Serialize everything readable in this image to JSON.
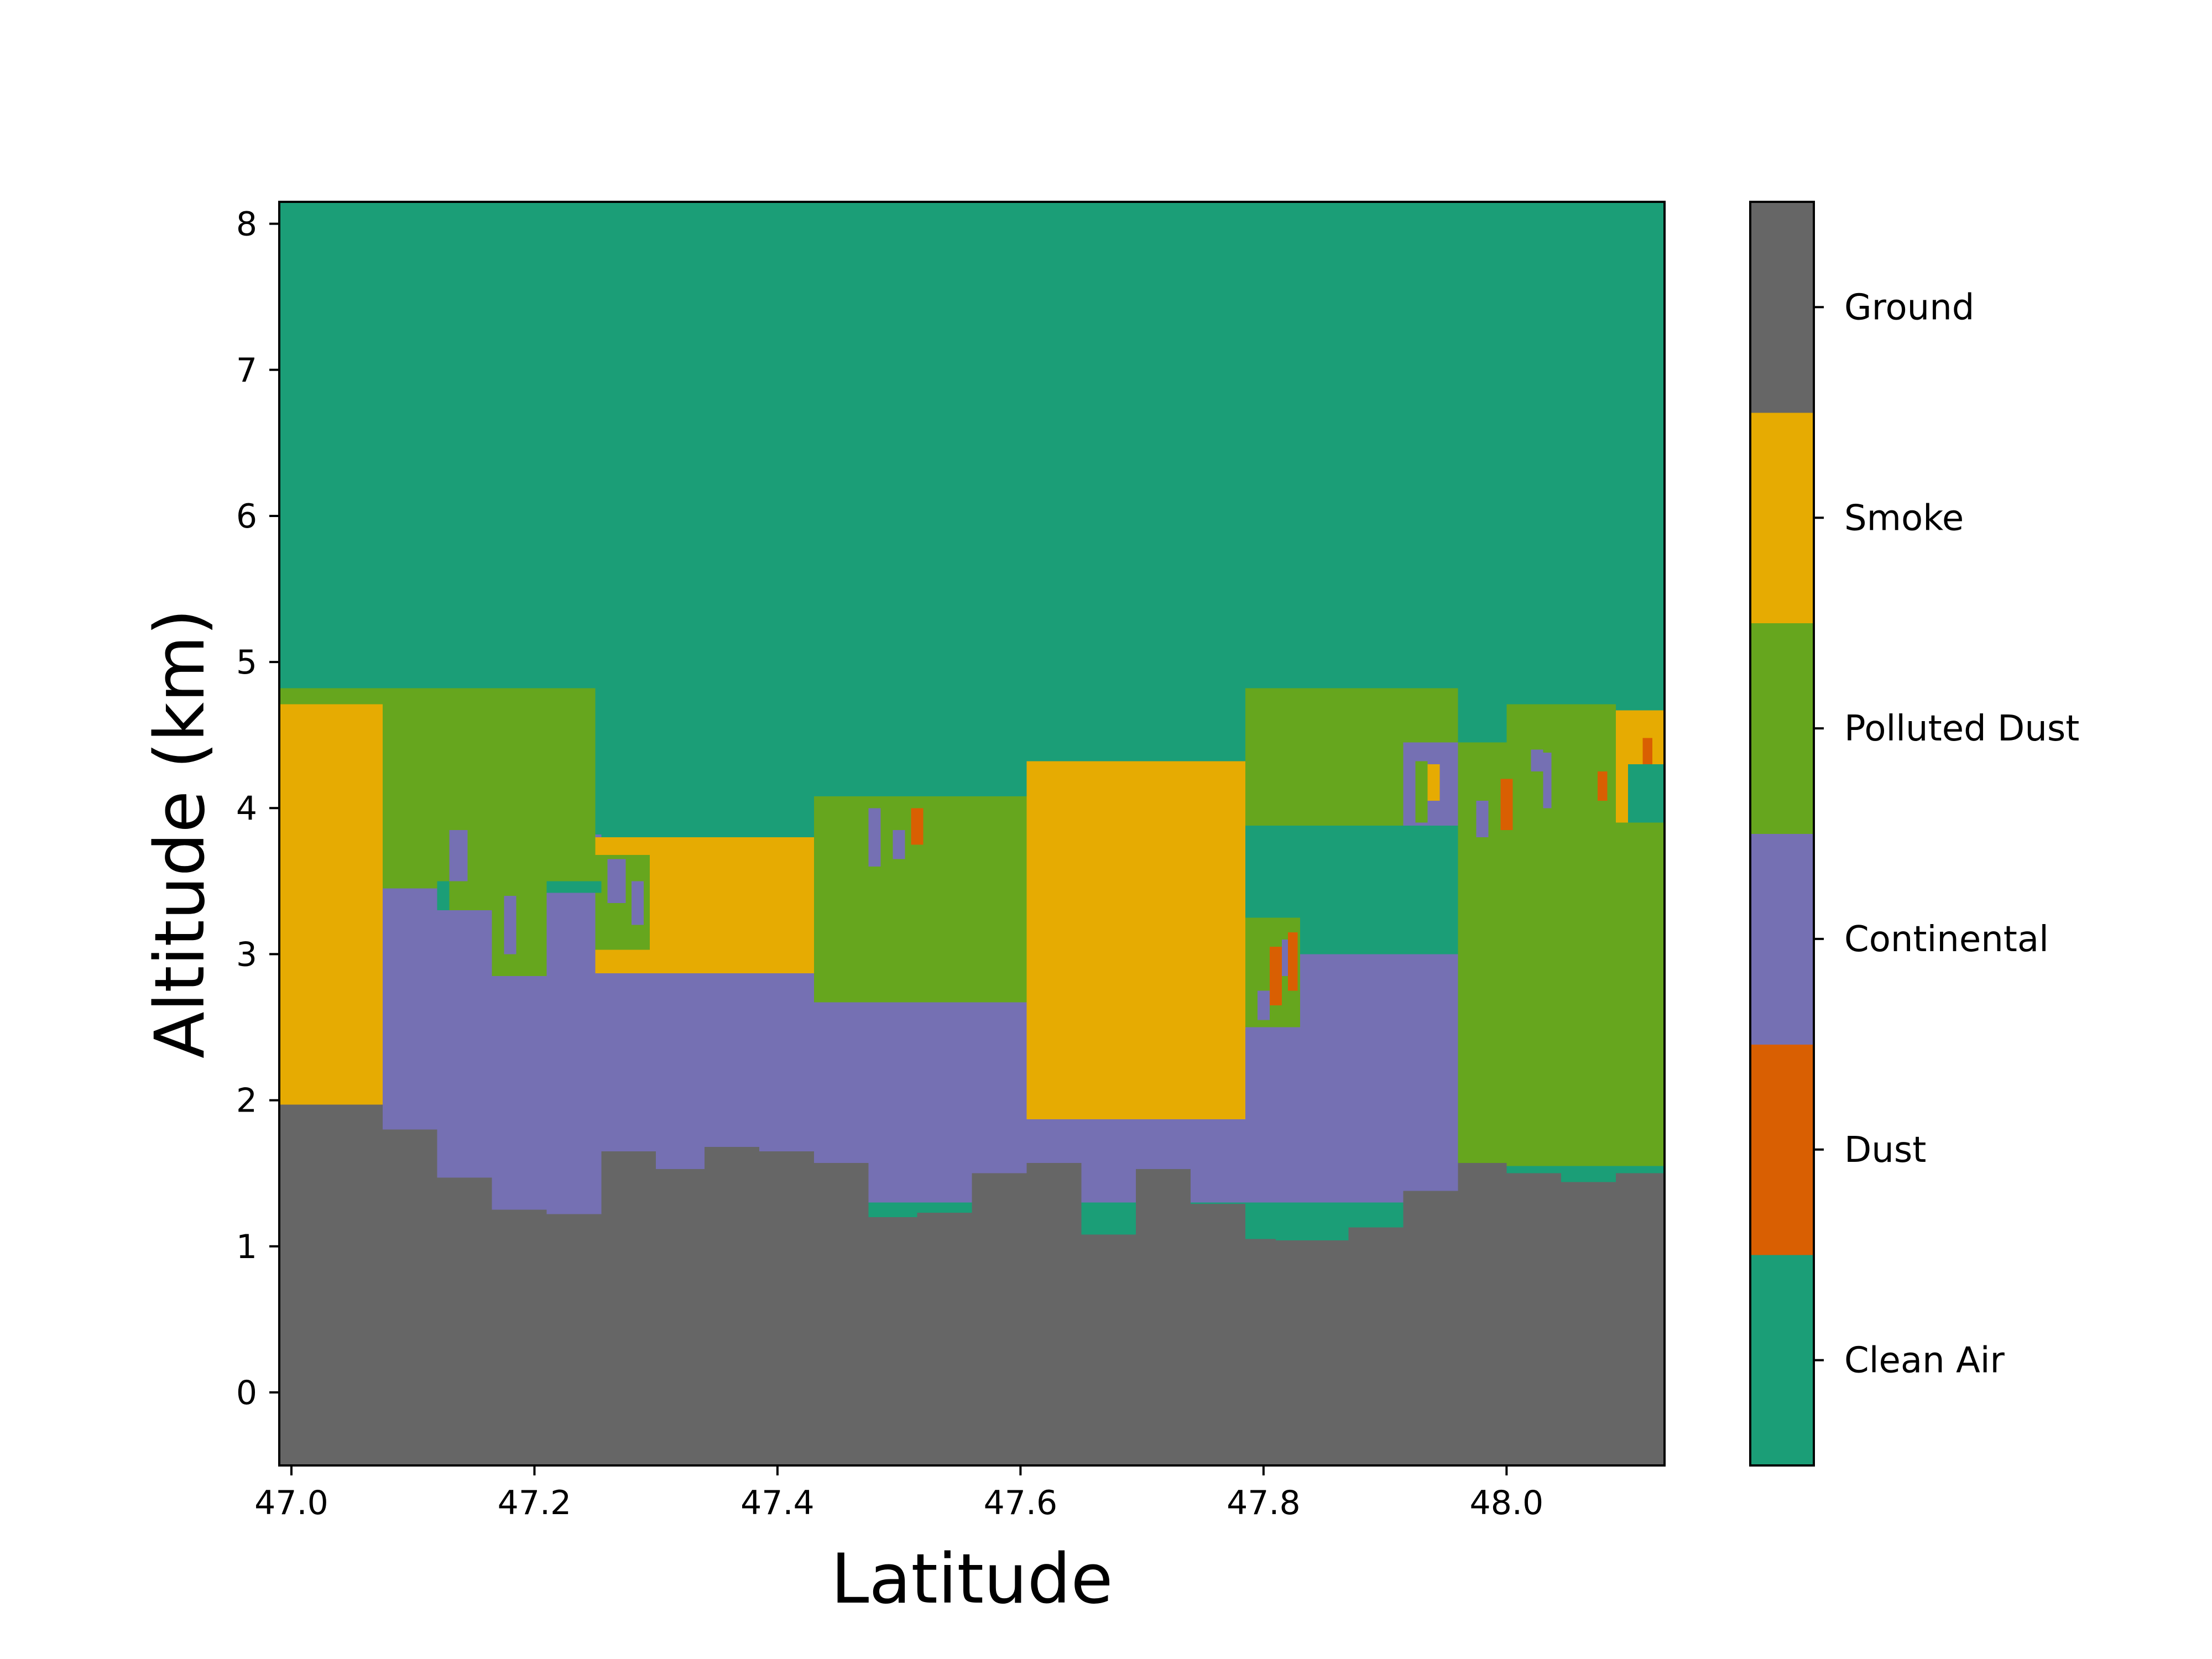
{
  "chart_data": {
    "type": "heatmap",
    "xlabel": "Latitude",
    "ylabel": "Altitude (km)",
    "xlim": [
      46.99,
      48.13
    ],
    "ylim": [
      -0.5,
      8.15
    ],
    "xticks": [
      "47.0",
      "47.2",
      "47.4",
      "47.6",
      "47.8",
      "48.0"
    ],
    "yticks": [
      "0",
      "1",
      "2",
      "3",
      "4",
      "5",
      "6",
      "7",
      "8"
    ],
    "background_class": "Clean Air",
    "classes": [
      {
        "name": "Clean Air",
        "color": "#1b9e77"
      },
      {
        "name": "Dust",
        "color": "#d95f02"
      },
      {
        "name": "Continental",
        "color": "#7570b3"
      },
      {
        "name": "Polluted Dust",
        "color": "#66a61e"
      },
      {
        "name": "Smoke",
        "color": "#e6ab02"
      },
      {
        "name": "Ground",
        "color": "#666666"
      }
    ],
    "regions": [
      {
        "class": "Polluted Dust",
        "x": [
          46.99,
          47.25
        ],
        "y": [
          2.0,
          4.82
        ]
      },
      {
        "class": "Smoke",
        "x": [
          46.99,
          47.075
        ],
        "y": [
          1.95,
          4.71
        ]
      },
      {
        "class": "Continental",
        "x": [
          47.075,
          47.255
        ],
        "y": [
          1.2,
          3.82
        ]
      },
      {
        "class": "Polluted Dust",
        "x": [
          47.075,
          47.25
        ],
        "y": [
          3.45,
          4.82
        ]
      },
      {
        "class": "Polluted Dust",
        "x": [
          47.12,
          47.165
        ],
        "y": [
          3.3,
          3.9
        ]
      },
      {
        "class": "Continental",
        "x": [
          47.13,
          47.145
        ],
        "y": [
          3.5,
          3.85
        ]
      },
      {
        "class": "Polluted Dust",
        "x": [
          47.165,
          47.21
        ],
        "y": [
          2.85,
          3.45
        ]
      },
      {
        "class": "Continental",
        "x": [
          47.175,
          47.185
        ],
        "y": [
          3.0,
          3.4
        ]
      },
      {
        "class": "Smoke",
        "x": [
          47.25,
          47.43
        ],
        "y": [
          2.87,
          3.8
        ]
      },
      {
        "class": "Polluted Dust",
        "x": [
          47.25,
          47.295
        ],
        "y": [
          3.03,
          3.68
        ]
      },
      {
        "class": "Continental",
        "x": [
          47.26,
          47.275
        ],
        "y": [
          3.35,
          3.65
        ]
      },
      {
        "class": "Continental",
        "x": [
          47.28,
          47.29
        ],
        "y": [
          3.2,
          3.5
        ]
      },
      {
        "class": "Continental",
        "x": [
          47.25,
          47.43
        ],
        "y": [
          1.5,
          2.87
        ]
      },
      {
        "class": "Polluted Dust",
        "x": [
          47.43,
          47.605
        ],
        "y": [
          2.67,
          4.08
        ]
      },
      {
        "class": "Continental",
        "x": [
          47.475,
          47.485
        ],
        "y": [
          3.6,
          4.0
        ]
      },
      {
        "class": "Continental",
        "x": [
          47.495,
          47.505
        ],
        "y": [
          3.65,
          3.85
        ]
      },
      {
        "class": "Dust",
        "x": [
          47.51,
          47.52
        ],
        "y": [
          3.75,
          4.0
        ]
      },
      {
        "class": "Continental",
        "x": [
          47.43,
          47.605
        ],
        "y": [
          1.3,
          2.67
        ]
      },
      {
        "class": "Continental",
        "x": [
          47.605,
          47.785
        ],
        "y": [
          1.3,
          1.87
        ]
      },
      {
        "class": "Smoke",
        "x": [
          47.605,
          47.785
        ],
        "y": [
          1.87,
          4.32
        ]
      },
      {
        "class": "Clean Air",
        "x": [
          47.785,
          47.96
        ],
        "y": [
          3.0,
          3.88
        ]
      },
      {
        "class": "Polluted Dust",
        "x": [
          47.785,
          47.96
        ],
        "y": [
          3.88,
          4.82
        ]
      },
      {
        "class": "Continental",
        "x": [
          47.785,
          47.96
        ],
        "y": [
          1.3,
          3.0
        ]
      },
      {
        "class": "Polluted Dust",
        "x": [
          47.785,
          47.83
        ],
        "y": [
          2.5,
          3.25
        ]
      },
      {
        "class": "Continental",
        "x": [
          47.795,
          47.805
        ],
        "y": [
          2.55,
          2.75
        ]
      },
      {
        "class": "Dust",
        "x": [
          47.805,
          47.815
        ],
        "y": [
          2.65,
          3.05
        ]
      },
      {
        "class": "Continental",
        "x": [
          47.815,
          47.82
        ],
        "y": [
          2.85,
          3.1
        ]
      },
      {
        "class": "Dust",
        "x": [
          47.82,
          47.828
        ],
        "y": [
          2.75,
          3.15
        ]
      },
      {
        "class": "Continental",
        "x": [
          47.915,
          47.96
        ],
        "y": [
          3.88,
          4.45
        ]
      },
      {
        "class": "Polluted Dust",
        "x": [
          47.925,
          47.935
        ],
        "y": [
          3.9,
          4.32
        ]
      },
      {
        "class": "Smoke",
        "x": [
          47.935,
          47.945
        ],
        "y": [
          4.05,
          4.3
        ]
      },
      {
        "class": "Polluted Dust",
        "x": [
          47.96,
          48.13
        ],
        "y": [
          1.55,
          4.45
        ]
      },
      {
        "class": "Polluted Dust",
        "x": [
          48.0,
          48.09
        ],
        "y": [
          4.45,
          4.71
        ]
      },
      {
        "class": "Continental",
        "x": [
          47.975,
          47.985
        ],
        "y": [
          3.8,
          4.05
        ]
      },
      {
        "class": "Dust",
        "x": [
          47.995,
          48.005
        ],
        "y": [
          3.85,
          4.2
        ]
      },
      {
        "class": "Continental",
        "x": [
          48.02,
          48.03
        ],
        "y": [
          4.25,
          4.4
        ]
      },
      {
        "class": "Continental",
        "x": [
          48.03,
          48.037
        ],
        "y": [
          4.0,
          4.38
        ]
      },
      {
        "class": "Dust",
        "x": [
          48.075,
          48.083
        ],
        "y": [
          4.05,
          4.25
        ]
      },
      {
        "class": "Polluted Dust",
        "x": [
          48.09,
          48.1
        ],
        "y": [
          4.05,
          4.3
        ]
      },
      {
        "class": "Smoke",
        "x": [
          48.09,
          48.13
        ],
        "y": [
          3.9,
          4.67
        ]
      },
      {
        "class": "Dust",
        "x": [
          48.112,
          48.12
        ],
        "y": [
          4.25,
          4.48
        ]
      },
      {
        "class": "Clean Air",
        "x": [
          48.1,
          48.13
        ],
        "y": [
          3.9,
          4.3
        ]
      }
    ],
    "ground_profile": [
      {
        "x": [
          46.99,
          47.075
        ],
        "top": 1.97
      },
      {
        "x": [
          47.075,
          47.12
        ],
        "top": 1.8
      },
      {
        "x": [
          47.12,
          47.165
        ],
        "top": 1.47
      },
      {
        "x": [
          47.165,
          47.21
        ],
        "top": 1.25
      },
      {
        "x": [
          47.21,
          47.255
        ],
        "top": 1.22
      },
      {
        "x": [
          47.255,
          47.3
        ],
        "top": 1.65
      },
      {
        "x": [
          47.3,
          47.34
        ],
        "top": 1.53
      },
      {
        "x": [
          47.34,
          47.385
        ],
        "top": 1.68
      },
      {
        "x": [
          47.385,
          47.43
        ],
        "top": 1.65
      },
      {
        "x": [
          47.43,
          47.475
        ],
        "top": 1.57
      },
      {
        "x": [
          47.475,
          47.515
        ],
        "top": 1.2
      },
      {
        "x": [
          47.515,
          47.56
        ],
        "top": 1.23
      },
      {
        "x": [
          47.56,
          47.605
        ],
        "top": 1.5
      },
      {
        "x": [
          47.605,
          47.65
        ],
        "top": 1.57
      },
      {
        "x": [
          47.65,
          47.695
        ],
        "top": 1.08
      },
      {
        "x": [
          47.695,
          47.74
        ],
        "top": 1.53
      },
      {
        "x": [
          47.74,
          47.785
        ],
        "top": 1.29
      },
      {
        "x": [
          47.785,
          47.81
        ],
        "top": 1.05
      },
      {
        "x": [
          47.81,
          47.87
        ],
        "top": 1.04
      },
      {
        "x": [
          47.87,
          47.915
        ],
        "top": 1.13
      },
      {
        "x": [
          47.915,
          47.96
        ],
        "top": 1.38
      },
      {
        "x": [
          47.96,
          48.0
        ],
        "top": 1.57
      },
      {
        "x": [
          48.0,
          48.045
        ],
        "top": 1.5
      },
      {
        "x": [
          48.045,
          48.09
        ],
        "top": 1.44
      },
      {
        "x": [
          48.09,
          48.13
        ],
        "top": 1.5
      }
    ],
    "clean_air_gaps": [
      {
        "x": [
          47.12,
          47.13
        ],
        "y": [
          3.3,
          3.5
        ]
      },
      {
        "x": [
          47.21,
          47.255
        ],
        "y": [
          3.42,
          3.5
        ]
      },
      {
        "x": [
          47.475,
          47.515
        ],
        "y": [
          1.2,
          1.3
        ]
      },
      {
        "x": [
          47.515,
          47.56
        ],
        "y": [
          1.23,
          1.3
        ]
      },
      {
        "x": [
          47.65,
          47.695
        ],
        "y": [
          1.08,
          1.3
        ]
      },
      {
        "x": [
          47.785,
          47.915
        ],
        "y": [
          1.04,
          1.3
        ]
      },
      {
        "x": [
          48.045,
          48.09
        ],
        "y": [
          1.44,
          1.55
        ]
      }
    ]
  }
}
